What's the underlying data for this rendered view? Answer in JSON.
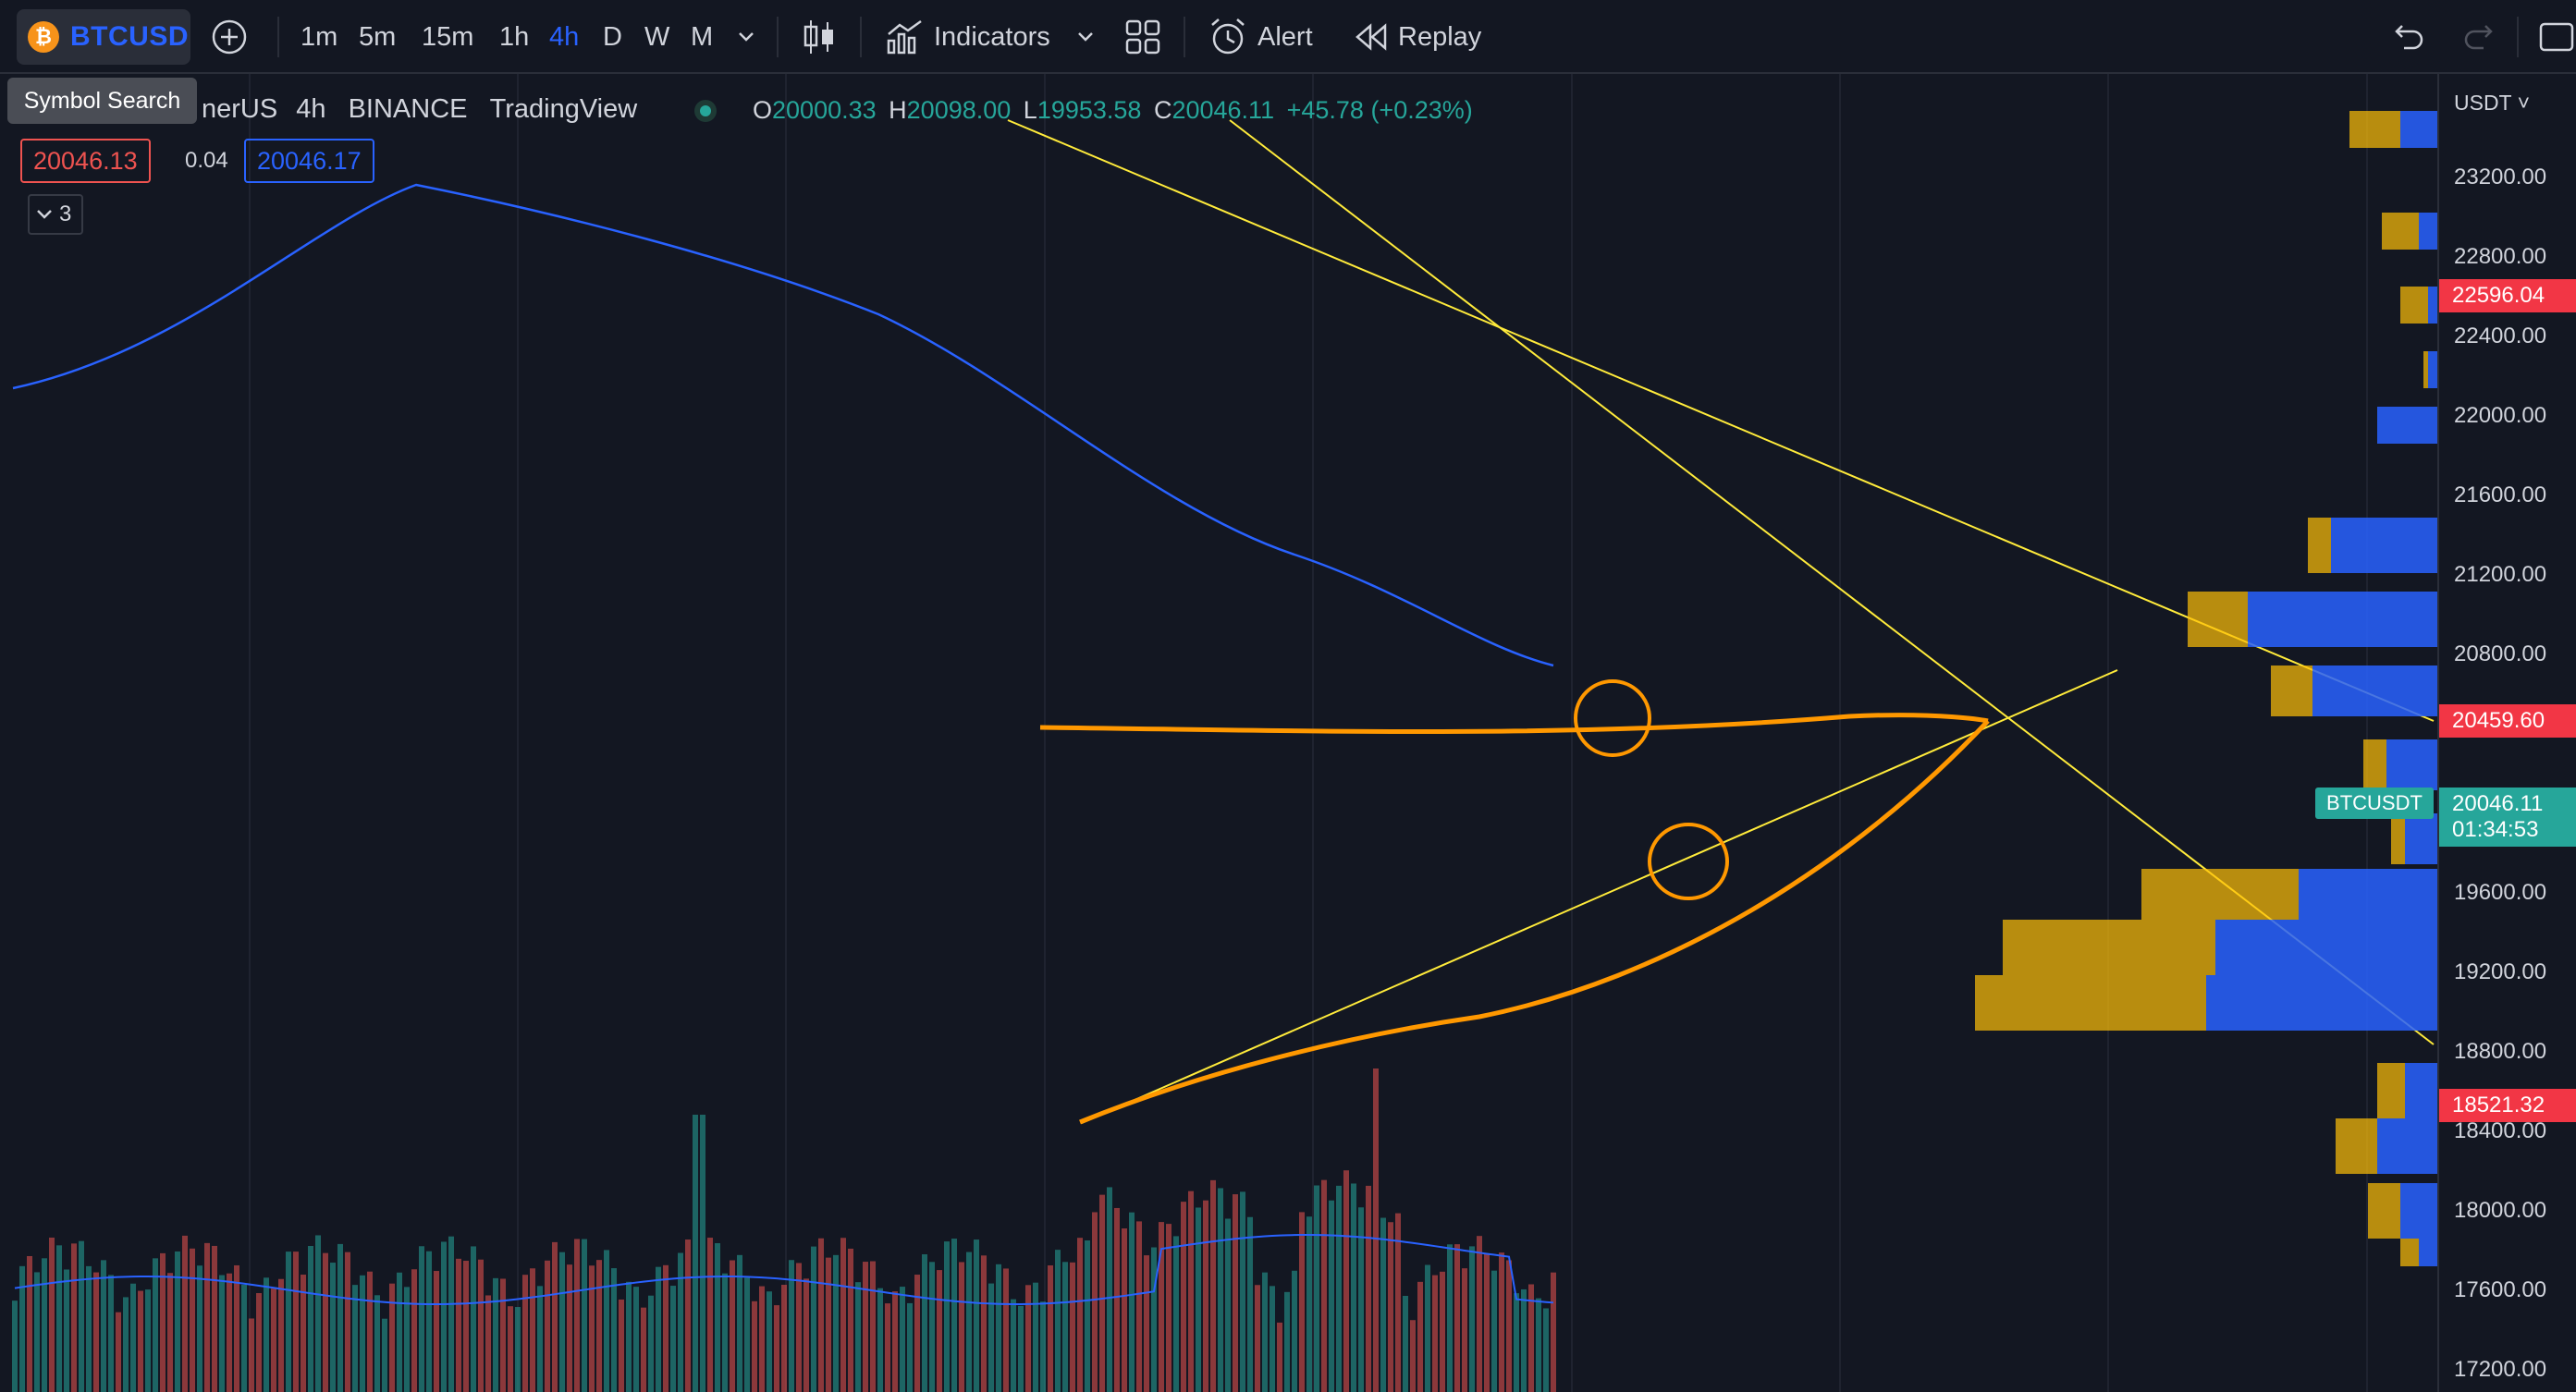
{
  "toolbar": {
    "symbol": "BTCUSD",
    "intervals": [
      "1m",
      "5m",
      "15m",
      "1h",
      "4h",
      "D",
      "W",
      "M"
    ],
    "active_interval": "4h",
    "indicators_label": "Indicators",
    "alert_label": "Alert",
    "replay_label": "Replay"
  },
  "tooltip": {
    "text": "Symbol Search"
  },
  "legend": {
    "title_fragment": "nerUS",
    "interval": "4h",
    "exchange": "BINANCE",
    "source": "TradingView",
    "o_label": "O",
    "o": "20000.33",
    "h_label": "H",
    "h": "20098.00",
    "l_label": "L",
    "l": "19953.58",
    "c_label": "C",
    "c": "20046.11",
    "change": "+45.78 (+0.23%)",
    "bid": "20046.13",
    "spread": "0.04",
    "ask": "20046.17",
    "collapsed_count": "3"
  },
  "price_axis": {
    "currency": "USDT",
    "labels": [
      "23200.00",
      "22800.00",
      "22400.00",
      "22000.00",
      "21600.00",
      "21200.00",
      "20800.00",
      "19600.00",
      "19200.00",
      "18800.00",
      "18400.00",
      "18000.00",
      "17600.00",
      "17200.00"
    ],
    "tags": {
      "top_line": "22596.04",
      "mid_line": "20459.60",
      "bottom_line": "18521.32",
      "last_price": "20046.11",
      "countdown": "01:34:53",
      "symbol_tag": "BTCUSDT"
    }
  },
  "colors": {
    "background": "#131722",
    "up": "#26a69a",
    "down": "#ef5350",
    "accent": "#2962ff",
    "hline": "#f23645",
    "drawing": "#ff9800",
    "trendline": "#ffeb3b"
  }
}
